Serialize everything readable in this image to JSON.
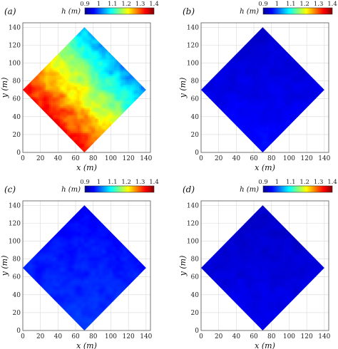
{
  "chart_data": [
    {
      "type": "heatmap",
      "panel_label": "(a)",
      "xlabel": "x (m)",
      "ylabel": "y (m)",
      "xlim": [
        0,
        145
      ],
      "ylim": [
        0,
        145
      ],
      "x_ticks": [
        0,
        20,
        40,
        60,
        80,
        100,
        120,
        140
      ],
      "y_ticks": [
        0,
        20,
        40,
        60,
        80,
        100,
        120,
        140
      ],
      "grid": true,
      "domain_vertices": [
        [
          70,
          0
        ],
        [
          140,
          70
        ],
        [
          70,
          140
        ],
        [
          0,
          70
        ]
      ],
      "field": {
        "min": 0.95,
        "max": 1.38,
        "gradient_from": [
          20,
          30
        ],
        "gradient_to": [
          130,
          125
        ],
        "noise": 0.05
      },
      "colorbar": {
        "label": "h (m)",
        "ticks": [
          0.9,
          1,
          1.1,
          1.2,
          1.3,
          1.4
        ],
        "range": [
          0.9,
          1.4
        ]
      }
    },
    {
      "type": "heatmap",
      "panel_label": "(b)",
      "xlabel": "x (m)",
      "ylabel": "y (m)",
      "xlim": [
        0,
        145
      ],
      "ylim": [
        0,
        145
      ],
      "x_ticks": [
        0,
        20,
        40,
        60,
        80,
        100,
        120,
        140
      ],
      "y_ticks": [
        0,
        20,
        40,
        60,
        80,
        100,
        120,
        140
      ],
      "grid": true,
      "domain_vertices": [
        [
          70,
          0
        ],
        [
          140,
          70
        ],
        [
          70,
          140
        ],
        [
          0,
          70
        ]
      ],
      "field": {
        "min": 0.935,
        "max": 0.965,
        "gradient_from": [
          70,
          0
        ],
        "gradient_to": [
          70,
          140
        ],
        "noise": 0.012
      },
      "colorbar": {
        "label": "h (m)",
        "ticks": [
          0.9,
          1,
          1.1,
          1.2,
          1.3,
          1.4
        ],
        "range": [
          0.9,
          1.4
        ]
      }
    },
    {
      "type": "heatmap",
      "panel_label": "(c)",
      "xlabel": "x (m)",
      "ylabel": "y (m)",
      "xlim": [
        0,
        145
      ],
      "ylim": [
        0,
        145
      ],
      "x_ticks": [
        0,
        20,
        40,
        60,
        80,
        100,
        120,
        140
      ],
      "y_ticks": [
        0,
        20,
        40,
        60,
        80,
        100,
        120,
        140
      ],
      "grid": true,
      "domain_vertices": [
        [
          70,
          0
        ],
        [
          140,
          70
        ],
        [
          70,
          140
        ],
        [
          0,
          70
        ]
      ],
      "field": {
        "min": 0.96,
        "max": 0.99,
        "gradient_from": [
          70,
          0
        ],
        "gradient_to": [
          70,
          140
        ],
        "noise": 0.015
      },
      "colorbar": {
        "label": "h (m)",
        "ticks": [
          0.9,
          1,
          1.1,
          1.2,
          1.3,
          1.4
        ],
        "range": [
          0.9,
          1.4
        ]
      }
    },
    {
      "type": "heatmap",
      "panel_label": "(d)",
      "xlabel": "x (m)",
      "ylabel": "y (m)",
      "xlim": [
        0,
        145
      ],
      "ylim": [
        0,
        145
      ],
      "x_ticks": [
        0,
        20,
        40,
        60,
        80,
        100,
        120,
        140
      ],
      "y_ticks": [
        0,
        20,
        40,
        60,
        80,
        100,
        120,
        140
      ],
      "grid": true,
      "domain_vertices": [
        [
          70,
          0
        ],
        [
          140,
          70
        ],
        [
          70,
          140
        ],
        [
          0,
          70
        ]
      ],
      "field": {
        "min": 0.93,
        "max": 0.955,
        "gradient_from": [
          70,
          0
        ],
        "gradient_to": [
          70,
          140
        ],
        "noise": 0.012
      },
      "colorbar": {
        "label": "h (m)",
        "ticks": [
          0.9,
          1,
          1.1,
          1.2,
          1.3,
          1.4
        ],
        "range": [
          0.9,
          1.4
        ]
      }
    }
  ],
  "colormap": [
    "#00008f",
    "#0000ff",
    "#0080ff",
    "#00ffff",
    "#80ff80",
    "#ffff00",
    "#ff8000",
    "#ff0000",
    "#800000"
  ]
}
